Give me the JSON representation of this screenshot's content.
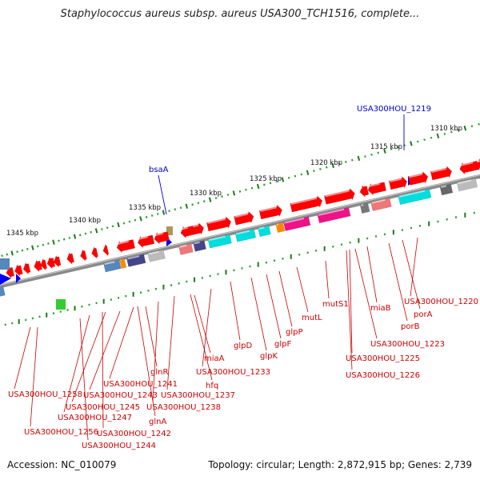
{
  "title": "Staphylococcus aureus subsp. aureus USA300_TCH1516, complete...",
  "footer": {
    "accession": "Accession: NC_010079",
    "summary": "Topology: circular; Length: 2,872,915 bp; Genes: 2,739"
  },
  "colors": {
    "backbone": "#8a8a8a",
    "forward_gene": "#ff0000",
    "reverse_gene": "#ee0000",
    "tick_major": "#1b7a1b",
    "tick_minor": "#2aa02a",
    "label_red": "#cc0000",
    "label_blue": "#0000cc",
    "cds_cyan": "#00dddd",
    "cds_magenta": "#ee1188",
    "cds_gray": "#bbbbbb",
    "cds_purple": "#444488",
    "cds_steel": "#5588bb",
    "cds_orange": "#ff8800",
    "cds_pink": "#ee7777"
  },
  "scale": {
    "unit": "kbp",
    "ticks": [
      {
        "label": "1310 kbp",
        "value": 1310
      },
      {
        "label": "1315 kbp",
        "value": 1315
      },
      {
        "label": "1320 kbp",
        "value": 1320
      },
      {
        "label": "1325 kbp",
        "value": 1325
      },
      {
        "label": "1330 kbp",
        "value": 1330
      },
      {
        "label": "1335 kbp",
        "value": 1335
      },
      {
        "label": "1340 kbp",
        "value": 1340
      },
      {
        "label": "1345 kbp",
        "value": 1345
      }
    ]
  },
  "features_top": [
    {
      "label": "USA300HOU_1219"
    },
    {
      "label": "bsaA"
    }
  ],
  "gene_labels": [
    {
      "label": "USA300HOU_1220"
    },
    {
      "label": "porA"
    },
    {
      "label": "porB"
    },
    {
      "label": "miaB"
    },
    {
      "label": "USA300HOU_1223"
    },
    {
      "label": "USA300HOU_1225"
    },
    {
      "label": "USA300HOU_1226"
    },
    {
      "label": "mutS1"
    },
    {
      "label": "mutL"
    },
    {
      "label": "glpP"
    },
    {
      "label": "glpF"
    },
    {
      "label": "glpK"
    },
    {
      "label": "glpD"
    },
    {
      "label": "USA300HOU_1233"
    },
    {
      "label": "miaA"
    },
    {
      "label": "hfq"
    },
    {
      "label": "USA300HOU_1237"
    },
    {
      "label": "USA300HOU_1238"
    },
    {
      "label": "glnR"
    },
    {
      "label": "USA300HOU_1241"
    },
    {
      "label": "USA300HOU_1243"
    },
    {
      "label": "USA300HOU_1245"
    },
    {
      "label": "glnA"
    },
    {
      "label": "USA300HOU_1242"
    },
    {
      "label": "USA300HOU_1247"
    },
    {
      "label": "USA300HOU_1244"
    },
    {
      "label": "USA300HOU_1258"
    },
    {
      "label": "USA300HOU_1256"
    }
  ]
}
